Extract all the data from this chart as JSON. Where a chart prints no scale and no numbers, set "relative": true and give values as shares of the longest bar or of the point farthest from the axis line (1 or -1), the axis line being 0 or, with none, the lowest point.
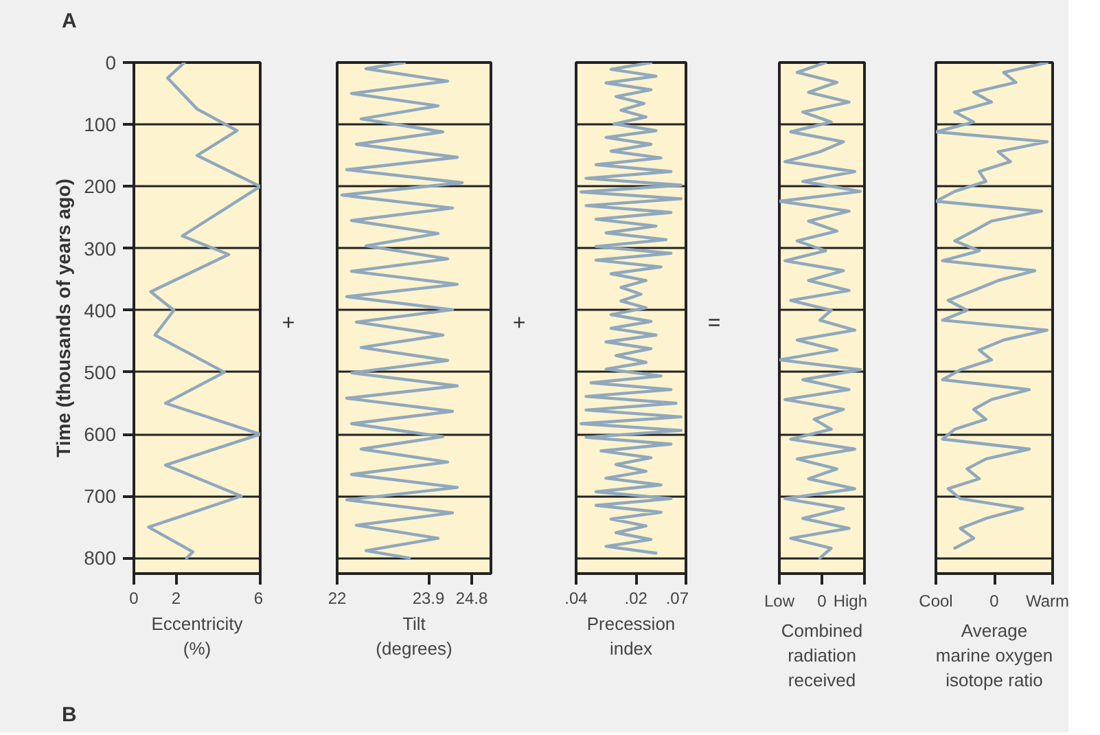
{
  "chart_data": [
    {
      "type": "line",
      "orientation": "horizontal",
      "xlabel": "Eccentricity\n(%)",
      "ylabel": "Time (thousands of years ago)",
      "annotations": [
        "A",
        "B",
        "+"
      ],
      "color": "#8fa8bd",
      "grid": "y",
      "x": [
        0,
        25,
        75,
        110,
        150,
        200,
        280,
        310,
        370,
        400,
        440,
        500,
        550,
        600,
        650,
        700,
        750,
        790,
        800
      ],
      "values": [
        2.4,
        1.6,
        3.0,
        4.9,
        3.0,
        6.0,
        2.3,
        4.5,
        0.8,
        1.9,
        1.0,
        4.3,
        1.5,
        6.0,
        1.5,
        5.1,
        0.7,
        2.8,
        2.5
      ],
      "xlim": [
        0,
        6
      ],
      "xticks": [
        0,
        2,
        6
      ],
      "ylim": [
        825,
        0
      ],
      "yticks": [
        0,
        100,
        200,
        300,
        400,
        500,
        600,
        700,
        800
      ]
    },
    {
      "type": "line",
      "orientation": "horizontal",
      "xlabel": "Tilt\n(degrees)",
      "annotations": [
        "+"
      ],
      "color": "#8fa8bd",
      "grid": "y",
      "tick_labels": "x",
      "x": [
        0,
        10,
        30,
        50,
        70,
        91,
        112,
        132,
        153,
        173,
        194,
        214,
        235,
        255,
        276,
        296,
        317,
        337,
        358,
        378,
        399,
        419,
        440,
        460,
        481,
        501,
        522,
        542,
        563,
        583,
        604,
        624,
        645,
        665,
        686,
        706,
        727,
        747,
        768,
        788,
        800
      ],
      "values": [
        23.4,
        22.6,
        24.3,
        22.3,
        24.1,
        22.5,
        24.2,
        22.4,
        24.5,
        22.2,
        24.6,
        22.1,
        24.4,
        22.3,
        24.1,
        22.6,
        24.3,
        22.3,
        24.5,
        22.2,
        24.4,
        22.4,
        24.2,
        22.5,
        24.3,
        22.3,
        24.5,
        22.2,
        24.4,
        22.3,
        24.2,
        22.5,
        24.3,
        22.3,
        24.5,
        22.2,
        24.4,
        22.4,
        24.1,
        22.6,
        23.5
      ],
      "xlim": [
        22,
        25.2
      ],
      "xticks": [
        22,
        23.9,
        24.8
      ],
      "ylim": [
        825,
        0
      ],
      "yticks": [
        0,
        100,
        200,
        300,
        400,
        500,
        600,
        700,
        800
      ]
    },
    {
      "type": "line",
      "orientation": "horizontal",
      "xlabel": "Precession\nindex",
      "annotations": [
        "="
      ],
      "color": "#8fa8bd",
      "grid": "y",
      "tick_labels": "x",
      "x": [
        0,
        11,
        22,
        33,
        44,
        55,
        66,
        77,
        88,
        99,
        110,
        121,
        132,
        143,
        154,
        165,
        176,
        187,
        198,
        209,
        220,
        231,
        242,
        253,
        264,
        275,
        286,
        297,
        308,
        319,
        330,
        341,
        352,
        363,
        374,
        385,
        396,
        407,
        418,
        429,
        440,
        451,
        462,
        473,
        484,
        495,
        506,
        517,
        528,
        539,
        550,
        561,
        572,
        583,
        594,
        605,
        616,
        627,
        638,
        649,
        660,
        671,
        682,
        693,
        704,
        715,
        726,
        737,
        748,
        759,
        770,
        781,
        792
      ],
      "values": [
        0.035,
        -0.005,
        0.04,
        -0.01,
        0.035,
        0.0,
        0.028,
        0.005,
        0.03,
        -0.002,
        0.04,
        -0.01,
        0.035,
        -0.005,
        0.045,
        -0.02,
        0.055,
        -0.03,
        0.065,
        -0.035,
        0.065,
        -0.03,
        0.055,
        -0.02,
        0.04,
        -0.01,
        0.05,
        -0.02,
        0.055,
        -0.02,
        0.045,
        -0.005,
        0.03,
        0.005,
        0.025,
        0.005,
        0.03,
        -0.005,
        0.035,
        -0.005,
        0.04,
        -0.01,
        0.035,
        0.0,
        0.03,
        -0.01,
        0.045,
        -0.025,
        0.055,
        -0.03,
        0.06,
        -0.03,
        0.065,
        -0.035,
        0.065,
        -0.03,
        0.055,
        -0.015,
        0.035,
        0.0,
        0.03,
        -0.01,
        0.045,
        -0.02,
        0.055,
        -0.02,
        0.045,
        -0.005,
        0.03,
        0.0,
        0.035,
        -0.01,
        0.04
      ],
      "xlim": [
        -0.04,
        0.07
      ],
      "xticks": [
        {
          "value": -0.04,
          "label": ".04"
        },
        {
          "value": 0.02,
          "label": ".02"
        },
        {
          "value": 0.07,
          "label": ".07"
        }
      ],
      "ylim": [
        825,
        0
      ],
      "yticks": [
        0,
        100,
        200,
        300,
        400,
        500,
        600,
        700,
        800
      ]
    },
    {
      "type": "line",
      "orientation": "horizontal",
      "relative": true,
      "xlabel": "Combined\nradiation\nreceived",
      "annotations": [
        "Low",
        "0",
        "High"
      ],
      "color": "#8fa8bd",
      "grid": "y",
      "tick_labels": "x",
      "x": [
        0,
        16,
        32,
        48,
        64,
        80,
        96,
        112,
        128,
        144,
        160,
        176,
        192,
        208,
        224,
        240,
        256,
        272,
        288,
        304,
        320,
        336,
        352,
        368,
        384,
        400,
        416,
        432,
        448,
        464,
        480,
        496,
        512,
        528,
        544,
        560,
        576,
        592,
        608,
        624,
        640,
        656,
        672,
        688,
        704,
        720,
        736,
        752,
        768,
        784,
        800
      ],
      "values": [
        0.57,
        0.22,
        0.71,
        0.36,
        0.86,
        0.29,
        0.64,
        0.14,
        0.79,
        0.5,
        0.07,
        0.93,
        0.29,
        1.0,
        0.0,
        0.86,
        0.36,
        0.71,
        0.22,
        0.57,
        0.07,
        0.79,
        0.36,
        0.86,
        0.14,
        0.64,
        0.5,
        0.93,
        0.22,
        0.71,
        0.0,
        1.0,
        0.29,
        0.86,
        0.07,
        0.79,
        0.43,
        0.64,
        0.14,
        0.93,
        0.22,
        0.71,
        0.36,
        0.93,
        0.07,
        0.79,
        0.29,
        0.86,
        0.14,
        0.64,
        0.5
      ],
      "ylim": [
        825,
        0
      ],
      "yticks": [
        0,
        100,
        200,
        300,
        400,
        500,
        600,
        700,
        800
      ]
    },
    {
      "type": "line",
      "orientation": "horizontal",
      "relative": true,
      "xlabel": "Average\nmarine oxygen\nisotope ratio",
      "annotations": [
        "Cool",
        "0",
        "Warm"
      ],
      "color": "#8fa8bd",
      "grid": "y",
      "tick_labels": "x",
      "x": [
        0,
        16,
        32,
        48,
        64,
        80,
        96,
        112,
        128,
        144,
        160,
        176,
        192,
        208,
        224,
        240,
        256,
        272,
        288,
        304,
        320,
        336,
        352,
        368,
        384,
        400,
        416,
        432,
        448,
        464,
        480,
        496,
        512,
        528,
        544,
        560,
        576,
        592,
        608,
        624,
        640,
        656,
        672,
        688,
        704,
        720,
        736,
        752,
        768,
        784
      ],
      "values": [
        1.0,
        0.61,
        0.72,
        0.34,
        0.5,
        0.17,
        0.34,
        0.0,
        1.0,
        0.56,
        0.67,
        0.39,
        0.45,
        0.17,
        0.0,
        0.95,
        0.5,
        0.34,
        0.17,
        0.39,
        0.06,
        0.89,
        0.56,
        0.34,
        0.11,
        0.28,
        0.06,
        1.0,
        0.61,
        0.39,
        0.5,
        0.22,
        0.06,
        0.84,
        0.5,
        0.34,
        0.45,
        0.17,
        0.06,
        0.84,
        0.45,
        0.28,
        0.39,
        0.11,
        0.22,
        0.78,
        0.45,
        0.22,
        0.34,
        0.17
      ],
      "ylim": [
        825,
        0
      ],
      "yticks": [
        0,
        100,
        200,
        300,
        400,
        500,
        600,
        700,
        800
      ]
    }
  ]
}
